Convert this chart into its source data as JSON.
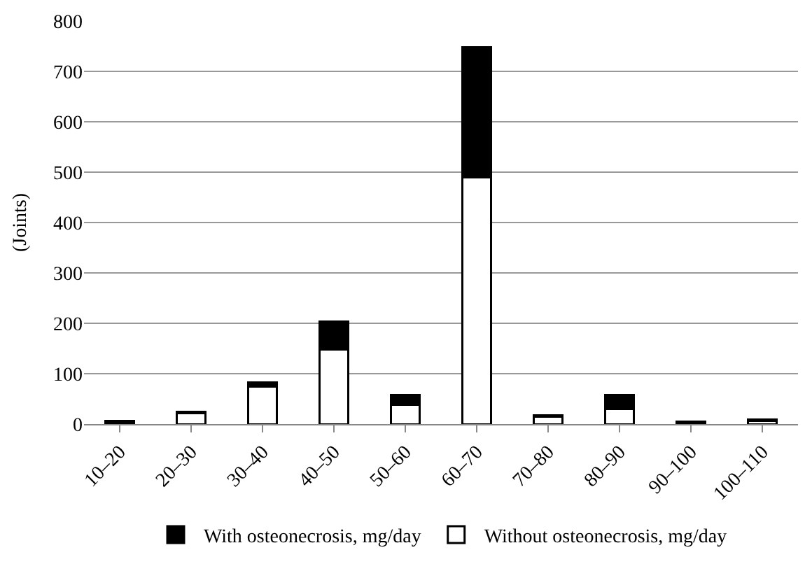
{
  "chart_data": {
    "type": "bar",
    "stacked": true,
    "ylabel": "(Joints)",
    "categories": [
      "10–20",
      "20–30",
      "30–40",
      "40–50",
      "50–60",
      "60–70",
      "70–80",
      "80–90",
      "90–100",
      "100–110"
    ],
    "series": [
      {
        "name": "Without osteonecrosis, mg/day",
        "color": "#ffffff",
        "values": [
          2,
          22,
          75,
          148,
          38,
          490,
          14,
          30,
          2,
          6
        ]
      },
      {
        "name": "With osteonecrosis, mg/day",
        "color": "#000000",
        "values": [
          4,
          3,
          8,
          55,
          20,
          258,
          3,
          28,
          3,
          3
        ]
      }
    ],
    "ylim": [
      0,
      800
    ],
    "yticks": [
      0,
      100,
      200,
      300,
      400,
      500,
      600,
      700,
      800
    ],
    "grid": "y",
    "legend": "bottom"
  }
}
